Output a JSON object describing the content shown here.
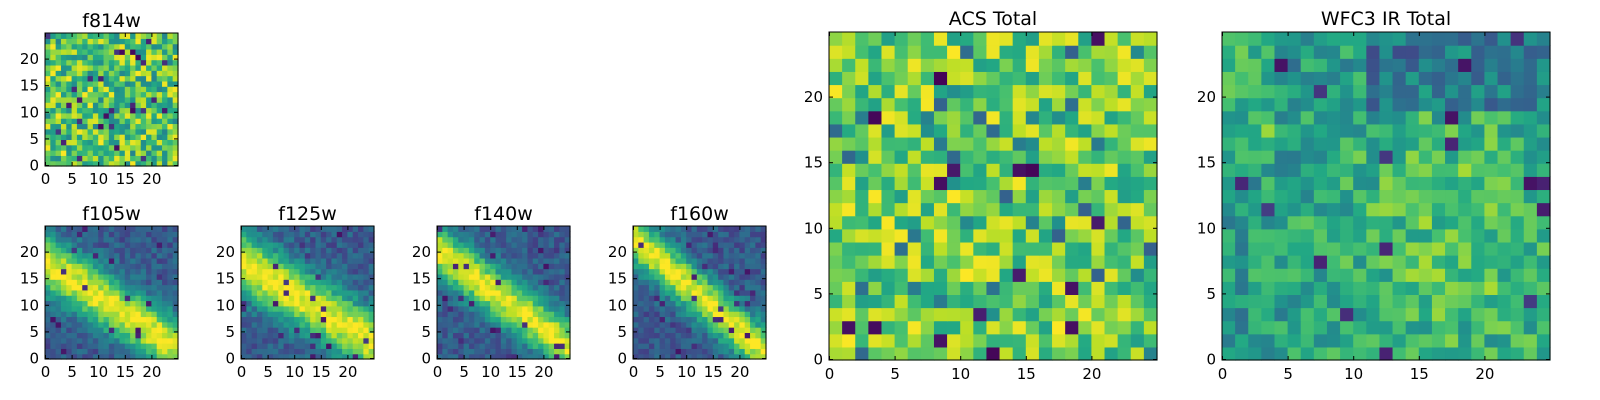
{
  "figure": {
    "background": "#ffffff"
  },
  "chart_data": [
    {
      "type": "heatmap",
      "id": "f814w",
      "title": "f814w",
      "grid_size": 25,
      "pattern": "noise",
      "xticks": [
        0,
        5,
        10,
        15,
        20
      ],
      "yticks": [
        0,
        5,
        10,
        15,
        20
      ],
      "xlim": [
        0,
        25
      ],
      "ylim": [
        0,
        25
      ],
      "colormap": "viridis",
      "seed": 11
    },
    {
      "type": "heatmap",
      "id": "f105w",
      "title": "f105w",
      "grid_size": 25,
      "pattern": "diagonal",
      "band": {
        "start": [
          0,
          17.5
        ],
        "end": [
          24,
          2
        ],
        "width": 3.2
      },
      "xticks": [
        0,
        5,
        10,
        15,
        20
      ],
      "yticks": [
        0,
        5,
        10,
        15,
        20
      ],
      "xlim": [
        0,
        25
      ],
      "ylim": [
        0,
        25
      ],
      "colormap": "viridis",
      "seed": 21
    },
    {
      "type": "heatmap",
      "id": "f125w",
      "title": "f125w",
      "grid_size": 25,
      "pattern": "diagonal",
      "band": {
        "start": [
          0,
          17.5
        ],
        "end": [
          22,
          4
        ],
        "width": 3.5
      },
      "xticks": [
        0,
        5,
        10,
        15,
        20
      ],
      "yticks": [
        0,
        5,
        10,
        15,
        20
      ],
      "xlim": [
        0,
        25
      ],
      "ylim": [
        0,
        25
      ],
      "colormap": "viridis",
      "seed": 31
    },
    {
      "type": "heatmap",
      "id": "f140w",
      "title": "f140w",
      "grid_size": 25,
      "pattern": "diagonal",
      "band": {
        "start": [
          1,
          19
        ],
        "end": [
          24,
          2
        ],
        "width": 2.8
      },
      "xticks": [
        0,
        5,
        10,
        15,
        20
      ],
      "yticks": [
        0,
        5,
        10,
        15,
        20
      ],
      "xlim": [
        0,
        25
      ],
      "ylim": [
        0,
        25
      ],
      "colormap": "viridis",
      "seed": 41
    },
    {
      "type": "heatmap",
      "id": "f160w",
      "title": "f160w",
      "grid_size": 25,
      "pattern": "diagonal",
      "band": {
        "start": [
          0,
          22
        ],
        "end": [
          24,
          1
        ],
        "width": 2.5
      },
      "xticks": [
        0,
        5,
        10,
        15,
        20
      ],
      "yticks": [
        0,
        5,
        10,
        15,
        20
      ],
      "xlim": [
        0,
        25
      ],
      "ylim": [
        0,
        25
      ],
      "colormap": "viridis",
      "seed": 51
    },
    {
      "type": "heatmap",
      "id": "acs-total",
      "title": "ACS Total",
      "grid_size": 25,
      "pattern": "noise-high",
      "xticks": [
        0,
        5,
        10,
        15,
        20
      ],
      "yticks": [
        0,
        5,
        10,
        15,
        20
      ],
      "xlim": [
        0,
        25
      ],
      "ylim": [
        0,
        25
      ],
      "colormap": "viridis",
      "seed": 61
    },
    {
      "type": "heatmap",
      "id": "wfc3-ir-total",
      "title": "WFC3 IR Total",
      "grid_size": 25,
      "pattern": "diffuse",
      "xticks": [
        0,
        5,
        10,
        15,
        20
      ],
      "yticks": [
        0,
        5,
        10,
        15,
        20
      ],
      "xlim": [
        0,
        25
      ],
      "ylim": [
        0,
        25
      ],
      "colormap": "viridis",
      "seed": 71
    }
  ]
}
